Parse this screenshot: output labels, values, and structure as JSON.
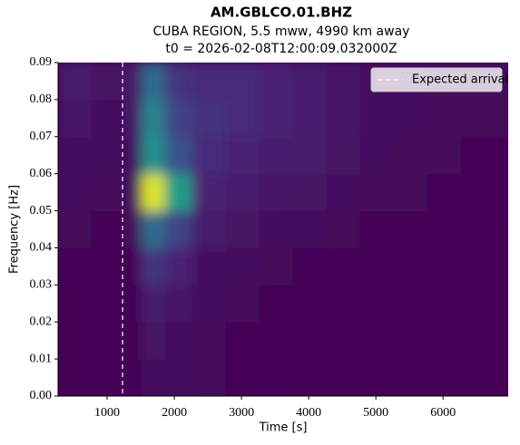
{
  "chart_data": {
    "type": "heatmap",
    "title": "AM.GBLCO.01.BHZ",
    "subtitle": "CUBA REGION, 5.5 mww, 4990 km away",
    "subtitle2": "t0 = 2026-02-08T12:00:09.032000Z",
    "xlabel": "Time [s]",
    "ylabel": "Frequency [Hz]",
    "xlim": [
      270,
      6970
    ],
    "ylim": [
      0,
      0.09
    ],
    "xticks": [
      1000,
      2000,
      3000,
      4000,
      5000,
      6000
    ],
    "yticks": [
      {
        "value": 0,
        "label": "0.00"
      },
      0.01,
      0.02,
      0.03,
      0.04,
      0.05,
      0.06,
      0.07,
      0.08,
      0.09
    ],
    "x_bins": [
      270,
      770,
      1270,
      1520,
      1870,
      2270,
      2770,
      3270,
      3770,
      4270,
      4770,
      5270,
      5770,
      6270,
      6970
    ],
    "y_bins": [
      0,
      0.01,
      0.02,
      0.03,
      0.04,
      0.05,
      0.06,
      0.07,
      0.08,
      0.09
    ],
    "z": [
      [
        0,
        0,
        0,
        0.03,
        0.03,
        0.02,
        0.01,
        0.01,
        0,
        0,
        0,
        0,
        0,
        0
      ],
      [
        0,
        0,
        0,
        0.05,
        0.04,
        0.02,
        0.01,
        0.01,
        0.01,
        0,
        0,
        0,
        0,
        0
      ],
      [
        0,
        0,
        0,
        0.08,
        0.06,
        0.03,
        0.02,
        0.01,
        0.01,
        0.01,
        0,
        0,
        0,
        0
      ],
      [
        0.01,
        0,
        0.01,
        0.15,
        0.1,
        0.04,
        0.03,
        0.02,
        0.01,
        0.01,
        0.01,
        0,
        0,
        0
      ],
      [
        0.02,
        0.01,
        0.02,
        0.35,
        0.2,
        0.07,
        0.05,
        0.04,
        0.03,
        0.02,
        0.01,
        0.01,
        0.01,
        0
      ],
      [
        0.03,
        0.02,
        0.03,
        0.95,
        0.55,
        0.1,
        0.08,
        0.06,
        0.05,
        0.03,
        0.02,
        0.02,
        0.01,
        0.01
      ],
      [
        0.04,
        0.03,
        0.04,
        0.5,
        0.25,
        0.12,
        0.1,
        0.08,
        0.07,
        0.05,
        0.03,
        0.02,
        0.02,
        0.01
      ],
      [
        0.06,
        0.04,
        0.06,
        0.45,
        0.2,
        0.14,
        0.12,
        0.1,
        0.08,
        0.06,
        0.04,
        0.03,
        0.02,
        0.02
      ],
      [
        0.07,
        0.05,
        0.06,
        0.35,
        0.15,
        0.12,
        0.12,
        0.1,
        0.08,
        0.06,
        0.04,
        0.03,
        0.02,
        0.02
      ]
    ],
    "expected_arrival": {
      "x": 1230,
      "label": "Expected arrival"
    },
    "legend": "upper right"
  }
}
